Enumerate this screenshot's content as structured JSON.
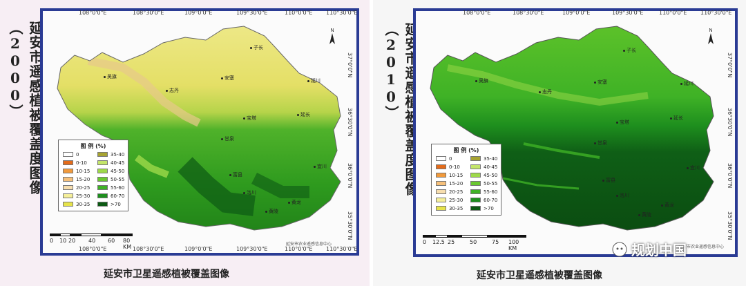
{
  "maps": [
    {
      "side_title": "延安市遥感植被覆盖度图像（2000）",
      "caption": "延安市卫星遥感植被覆盖图像",
      "top_ticks": [
        "108°0'0\"E",
        "108°30'0\"E",
        "109°0'0\"E",
        "109°30'0\"E",
        "110°0'0\"E",
        "110°30'0\"E"
      ],
      "bottom_ticks": [
        "108°0'0\"E",
        "108°30'0\"E",
        "109°0'0\"E",
        "109°30'0\"E",
        "110°0'0\"E",
        "110°30'0\"E"
      ],
      "lat_ticks": [
        "37°0'0\"N",
        "36°30'0\"N",
        "36°0'0\"N",
        "35°30'0\"N"
      ],
      "legend_title": "图 例 (%)",
      "legend_items": [
        {
          "label": "0",
          "color": "#ffffff"
        },
        {
          "label": "0-10",
          "color": "#e36b1b"
        },
        {
          "label": "10-15",
          "color": "#f19a3c"
        },
        {
          "label": "15-20",
          "color": "#f6c07a"
        },
        {
          "label": "20-25",
          "color": "#f7deae"
        },
        {
          "label": "25-30",
          "color": "#f5ef9a"
        },
        {
          "label": "30-35",
          "color": "#e6e34a"
        },
        {
          "label": "35-40",
          "color": "#a7a331"
        },
        {
          "label": "40-45",
          "color": "#c4e56b"
        },
        {
          "label": "45-50",
          "color": "#9ed94a"
        },
        {
          "label": "50-55",
          "color": "#6bc830"
        },
        {
          "label": "55-60",
          "color": "#3fb226"
        },
        {
          "label": "60-70",
          "color": "#1e8f1e"
        },
        {
          "label": ">70",
          "color": "#0d5a14"
        }
      ],
      "scale_labels": [
        "0",
        "10",
        "20",
        "40",
        "60",
        "80 KM"
      ],
      "credit": "延安市农业遥感信息中心",
      "cities": [
        "子长",
        "安塞",
        "志丹",
        "吴旗",
        "延川",
        "延长",
        "宜川",
        "甘泉",
        "富县",
        "洛川",
        "黄陵",
        "黄龙",
        "宝塔"
      ]
    },
    {
      "side_title": "延安市遥感植被覆盖度图像（2010）",
      "caption": "延安市卫星遥感植被覆盖图像",
      "top_ticks": [
        "108°0'0\"E",
        "108°30'0\"E",
        "109°0'0\"E",
        "109°30'0\"E",
        "110°0'0\"E",
        "110°30'0\"E"
      ],
      "lat_ticks": [
        "37°0'0\"N",
        "36°30'0\"N",
        "36°0'0\"N",
        "35°30'0\"N"
      ],
      "legend_title": "图 例 (%)",
      "legend_items": [
        {
          "label": "0",
          "color": "#ffffff"
        },
        {
          "label": "0-10",
          "color": "#e36b1b"
        },
        {
          "label": "10-15",
          "color": "#f19a3c"
        },
        {
          "label": "15-20",
          "color": "#f6c07a"
        },
        {
          "label": "20-25",
          "color": "#f7deae"
        },
        {
          "label": "25-30",
          "color": "#f5ef9a"
        },
        {
          "label": "30-35",
          "color": "#e6e34a"
        },
        {
          "label": "35-40",
          "color": "#a7a331"
        },
        {
          "label": "40-45",
          "color": "#c4e56b"
        },
        {
          "label": "45-50",
          "color": "#9ed94a"
        },
        {
          "label": "50-55",
          "color": "#6bc830"
        },
        {
          "label": "55-60",
          "color": "#3fb226"
        },
        {
          "label": "60-70",
          "color": "#1e8f1e"
        },
        {
          "label": ">70",
          "color": "#0d5a14"
        }
      ],
      "scale_labels": [
        "0",
        "12.5",
        "25",
        "50",
        "75",
        "100 KM"
      ],
      "credit": "延安市农业遥感信息中心",
      "cities": [
        "子长",
        "安塞",
        "志丹",
        "吴旗",
        "延川",
        "延长",
        "宜川",
        "甘泉",
        "富县",
        "洛川",
        "黄陵",
        "黄龙",
        "宝塔"
      ]
    }
  ],
  "watermark": "规划中国",
  "icons": {
    "north_arrow": "north-arrow-icon",
    "watermark_logo": "wechat-icon"
  }
}
